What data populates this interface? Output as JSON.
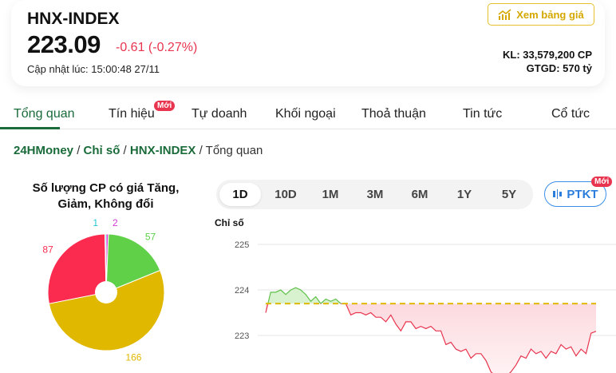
{
  "header": {
    "title": "HNX-INDEX",
    "price": "223.09",
    "change": "-0.61 (-0.27%)",
    "updated": "Cập nhật lúc: 15:00:48 27/11",
    "price_board_button": "Xem bảng giá",
    "volume": "KL: 33,579,200 CP",
    "value": "GTGD: 570 tỷ"
  },
  "tabs": [
    {
      "label": "Tổng quan"
    },
    {
      "label": "Tín hiệu",
      "badge": "Mới"
    },
    {
      "label": "Tự doanh"
    },
    {
      "label": "Khối ngoại"
    },
    {
      "label": "Thoả thuận"
    },
    {
      "label": "Tin tức"
    },
    {
      "label": "Cổ tức"
    }
  ],
  "breadcrumb": [
    "24HMoney",
    "Chỉ số",
    "HNX-INDEX",
    "Tổng quan"
  ],
  "colors": {
    "accent": "#1a6b3a",
    "down": "#e8344e",
    "up": "#5fd047",
    "unchanged": "#e0b800"
  },
  "pie": {
    "title": "Số lượng CP có giá Tăng, Giảm, Không đổi",
    "slices": [
      {
        "value": 2,
        "color": "#d63ad6"
      },
      {
        "value": 57,
        "color": "#5fd047"
      },
      {
        "value": 166,
        "color": "#e0b800"
      },
      {
        "value": 87,
        "color": "#fb2b50"
      },
      {
        "value": 1,
        "color": "#25c8d8"
      }
    ]
  },
  "ranges": [
    "1D",
    "10D",
    "1M",
    "3M",
    "6M",
    "1Y",
    "5Y"
  ],
  "active_range": "1D",
  "ptkt": {
    "label": "PTKT",
    "badge": "Mới"
  },
  "chart_data": {
    "type": "area",
    "ylabel": "Chỉ số",
    "yticks": [
      "225",
      "224",
      "223"
    ],
    "ylim": [
      221.9,
      225.2
    ],
    "reference": 223.7,
    "values": [
      223.5,
      223.95,
      223.95,
      224.0,
      223.9,
      224.0,
      224.05,
      224.0,
      223.9,
      223.75,
      223.85,
      223.7,
      223.8,
      223.75,
      223.8,
      223.7,
      223.7,
      223.45,
      223.5,
      223.5,
      223.45,
      223.5,
      223.4,
      223.4,
      223.3,
      223.45,
      223.25,
      223.1,
      223.3,
      223.3,
      223.15,
      223.2,
      223.15,
      223.2,
      223.1,
      223.1,
      222.8,
      222.85,
      222.7,
      222.65,
      222.7,
      222.5,
      222.6,
      222.6,
      222.45,
      222.2,
      222.1,
      222.05,
      222.1,
      222.2,
      222.35,
      222.55,
      222.5,
      222.7,
      222.6,
      222.65,
      222.5,
      222.65,
      222.6,
      222.8,
      222.7,
      222.75,
      222.55,
      222.7,
      222.6,
      223.05,
      223.09
    ]
  }
}
